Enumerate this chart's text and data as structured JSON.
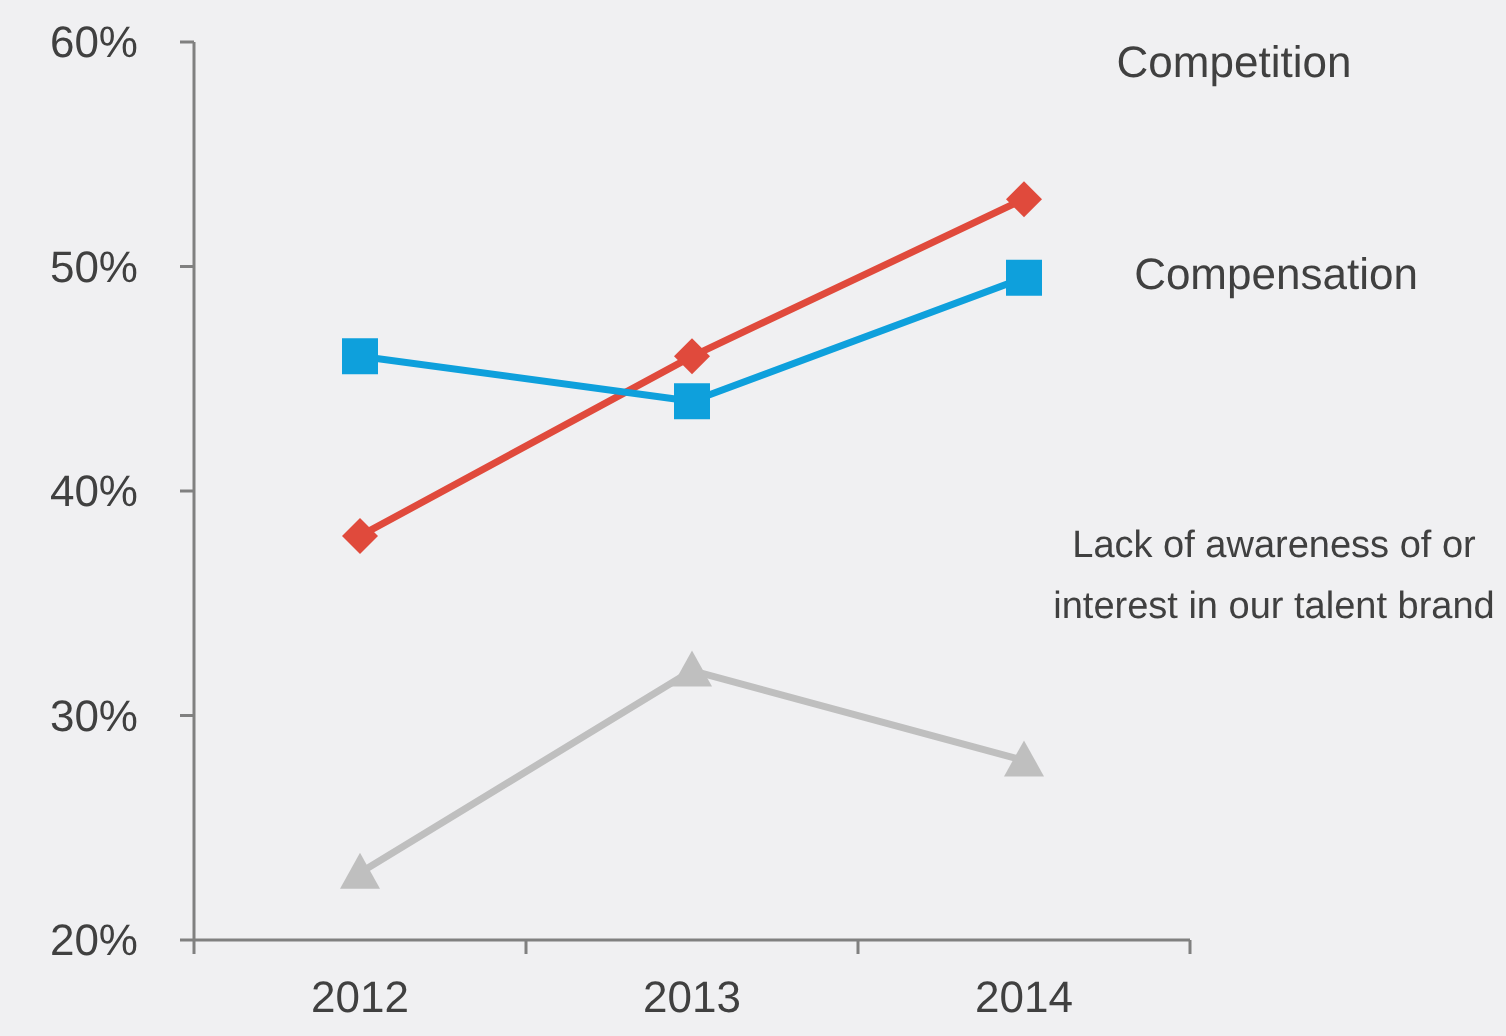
{
  "chart_data": {
    "type": "line",
    "categories": [
      "2012",
      "2013",
      "2014"
    ],
    "series": [
      {
        "name": "Competition",
        "color": "#e04a3c",
        "marker": "diamond",
        "values": [
          38,
          46,
          53
        ]
      },
      {
        "name": "Compensation",
        "color": "#0ea0dc",
        "marker": "square",
        "values": [
          46,
          44,
          49.5
        ]
      },
      {
        "name": "Lack of awareness of or interest in our talent brand",
        "color": "#bfbfbf",
        "marker": "triangle",
        "values": [
          23,
          32,
          28
        ]
      }
    ],
    "ylim": [
      20,
      60
    ],
    "yticks": [
      {
        "value": 20,
        "label": "20%"
      },
      {
        "value": 30,
        "label": "30%"
      },
      {
        "value": 40,
        "label": "40%"
      },
      {
        "value": 50,
        "label": "50%"
      },
      {
        "value": 60,
        "label": "60%"
      }
    ],
    "grid": false,
    "legend": false,
    "line_style": "solid"
  }
}
